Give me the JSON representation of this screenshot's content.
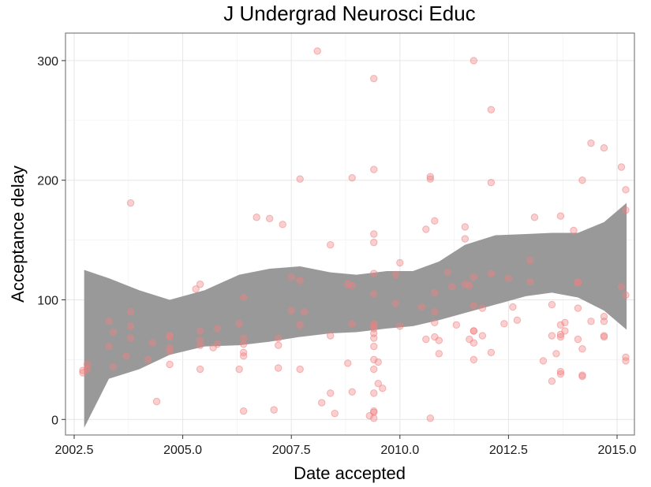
{
  "chart_data": {
    "type": "scatter",
    "title": "J Undergrad Neurosci Educ",
    "xlabel": "Date accepted",
    "ylabel": "Acceptance delay",
    "xlim": [
      2002.3,
      2015.4
    ],
    "ylim": [
      -13,
      323
    ],
    "x_ticks": [
      2002.5,
      2005.0,
      2007.5,
      2010.0,
      2012.5,
      2015.0
    ],
    "x_tick_labels": [
      "2002.5",
      "2005.0",
      "2007.5",
      "2010.0",
      "2012.5",
      "2015.0"
    ],
    "y_ticks": [
      0,
      100,
      200,
      300
    ],
    "y_tick_labels": [
      "0",
      "100",
      "200",
      "300"
    ],
    "grid": true,
    "point_color": "#f08080",
    "band_color": "#999999",
    "points": [
      [
        2002.7,
        39
      ],
      [
        2002.7,
        41
      ],
      [
        2002.8,
        42
      ],
      [
        2002.8,
        46
      ],
      [
        2003.3,
        82
      ],
      [
        2003.3,
        61
      ],
      [
        2003.4,
        73
      ],
      [
        2003.4,
        44
      ],
      [
        2003.7,
        53
      ],
      [
        2003.8,
        181
      ],
      [
        2003.8,
        90
      ],
      [
        2003.8,
        78
      ],
      [
        2003.8,
        68
      ],
      [
        2004.2,
        50
      ],
      [
        2004.3,
        64
      ],
      [
        2004.4,
        15
      ],
      [
        2004.7,
        46
      ],
      [
        2004.7,
        57
      ],
      [
        2004.7,
        60
      ],
      [
        2004.7,
        69
      ],
      [
        2004.7,
        70
      ],
      [
        2005.3,
        109
      ],
      [
        2005.4,
        113
      ],
      [
        2005.4,
        42
      ],
      [
        2005.4,
        62
      ],
      [
        2005.4,
        66
      ],
      [
        2005.4,
        74
      ],
      [
        2005.7,
        60
      ],
      [
        2005.8,
        63
      ],
      [
        2005.8,
        76
      ],
      [
        2006.3,
        42
      ],
      [
        2006.3,
        80
      ],
      [
        2006.4,
        102
      ],
      [
        2006.4,
        7
      ],
      [
        2006.4,
        68
      ],
      [
        2006.4,
        63
      ],
      [
        2006.4,
        53
      ],
      [
        2006.4,
        56
      ],
      [
        2006.7,
        169
      ],
      [
        2007.0,
        168
      ],
      [
        2007.1,
        8
      ],
      [
        2007.2,
        62
      ],
      [
        2007.2,
        68
      ],
      [
        2007.2,
        43
      ],
      [
        2007.3,
        163
      ],
      [
        2007.5,
        119
      ],
      [
        2007.5,
        91
      ],
      [
        2007.7,
        201
      ],
      [
        2007.7,
        116
      ],
      [
        2007.7,
        79
      ],
      [
        2007.7,
        42
      ],
      [
        2007.8,
        90
      ],
      [
        2008.1,
        308
      ],
      [
        2008.2,
        14
      ],
      [
        2008.4,
        146
      ],
      [
        2008.4,
        70
      ],
      [
        2008.4,
        22
      ],
      [
        2008.5,
        5
      ],
      [
        2008.8,
        47
      ],
      [
        2008.8,
        113
      ],
      [
        2008.9,
        112
      ],
      [
        2008.9,
        80
      ],
      [
        2008.9,
        23
      ],
      [
        2008.9,
        202
      ],
      [
        2009.3,
        3
      ],
      [
        2009.4,
        1
      ],
      [
        2009.4,
        6
      ],
      [
        2009.4,
        7
      ],
      [
        2009.4,
        285
      ],
      [
        2009.4,
        209
      ],
      [
        2009.4,
        155
      ],
      [
        2009.4,
        148
      ],
      [
        2009.4,
        122
      ],
      [
        2009.4,
        105
      ],
      [
        2009.4,
        80
      ],
      [
        2009.4,
        78
      ],
      [
        2009.4,
        76
      ],
      [
        2009.4,
        72
      ],
      [
        2009.4,
        68
      ],
      [
        2009.4,
        61
      ],
      [
        2009.4,
        50
      ],
      [
        2009.4,
        42
      ],
      [
        2009.4,
        22
      ],
      [
        2009.5,
        48
      ],
      [
        2009.5,
        30
      ],
      [
        2009.6,
        26
      ],
      [
        2009.9,
        97
      ],
      [
        2009.9,
        121
      ],
      [
        2010.0,
        131
      ],
      [
        2010.0,
        78
      ],
      [
        2010.5,
        94
      ],
      [
        2010.6,
        159
      ],
      [
        2010.6,
        67
      ],
      [
        2010.7,
        1
      ],
      [
        2010.7,
        203
      ],
      [
        2010.7,
        201
      ],
      [
        2010.8,
        166
      ],
      [
        2010.8,
        90
      ],
      [
        2010.8,
        106
      ],
      [
        2010.8,
        81
      ],
      [
        2010.8,
        69
      ],
      [
        2010.9,
        55
      ],
      [
        2010.9,
        66
      ],
      [
        2011.1,
        123
      ],
      [
        2011.2,
        111
      ],
      [
        2011.3,
        79
      ],
      [
        2011.5,
        161
      ],
      [
        2011.5,
        151
      ],
      [
        2011.5,
        113
      ],
      [
        2011.6,
        112
      ],
      [
        2011.6,
        67
      ],
      [
        2011.7,
        74
      ],
      [
        2011.7,
        74
      ],
      [
        2011.7,
        300
      ],
      [
        2011.7,
        119
      ],
      [
        2011.7,
        95
      ],
      [
        2011.7,
        64
      ],
      [
        2011.7,
        50
      ],
      [
        2011.9,
        93
      ],
      [
        2011.9,
        70
      ],
      [
        2012.1,
        259
      ],
      [
        2012.1,
        198
      ],
      [
        2012.1,
        122
      ],
      [
        2012.1,
        56
      ],
      [
        2012.4,
        80
      ],
      [
        2012.5,
        118
      ],
      [
        2012.6,
        94
      ],
      [
        2012.7,
        83
      ],
      [
        2013.0,
        115
      ],
      [
        2013.0,
        133
      ],
      [
        2013.1,
        169
      ],
      [
        2013.3,
        49
      ],
      [
        2013.5,
        96
      ],
      [
        2013.5,
        70
      ],
      [
        2013.5,
        32
      ],
      [
        2013.6,
        55
      ],
      [
        2013.7,
        170
      ],
      [
        2013.7,
        71
      ],
      [
        2013.7,
        79
      ],
      [
        2013.7,
        69
      ],
      [
        2013.7,
        40
      ],
      [
        2013.7,
        38
      ],
      [
        2013.8,
        81
      ],
      [
        2013.8,
        74
      ],
      [
        2014.0,
        158
      ],
      [
        2014.1,
        115
      ],
      [
        2014.1,
        114
      ],
      [
        2014.1,
        93
      ],
      [
        2014.1,
        67
      ],
      [
        2014.2,
        59
      ],
      [
        2014.2,
        37
      ],
      [
        2014.2,
        36
      ],
      [
        2014.2,
        200
      ],
      [
        2014.4,
        231
      ],
      [
        2014.4,
        82
      ],
      [
        2014.7,
        227
      ],
      [
        2014.7,
        86
      ],
      [
        2014.7,
        82
      ],
      [
        2014.7,
        70
      ],
      [
        2014.7,
        69
      ],
      [
        2015.1,
        211
      ],
      [
        2015.1,
        111
      ],
      [
        2015.2,
        192
      ],
      [
        2015.2,
        175
      ],
      [
        2015.2,
        104
      ],
      [
        2015.2,
        52
      ],
      [
        2015.2,
        49
      ]
    ],
    "band_x": [
      2002.73,
      2003.3,
      2004.0,
      2004.7,
      2005.5,
      2006.3,
      2007.0,
      2007.7,
      2008.4,
      2009.0,
      2009.7,
      2010.3,
      2010.9,
      2011.5,
      2012.2,
      2012.9,
      2013.5,
      2014.1,
      2014.7,
      2015.22
    ],
    "band_upper": [
      125,
      118,
      108,
      100,
      108,
      121,
      126,
      128,
      123,
      121,
      124,
      124,
      132,
      146,
      154,
      155,
      156,
      156,
      165,
      181
    ],
    "band_lower": [
      -7,
      34,
      42,
      54,
      61,
      62,
      65,
      69,
      72,
      73,
      76,
      78,
      83,
      89,
      96,
      103,
      106,
      102,
      91,
      75
    ]
  }
}
